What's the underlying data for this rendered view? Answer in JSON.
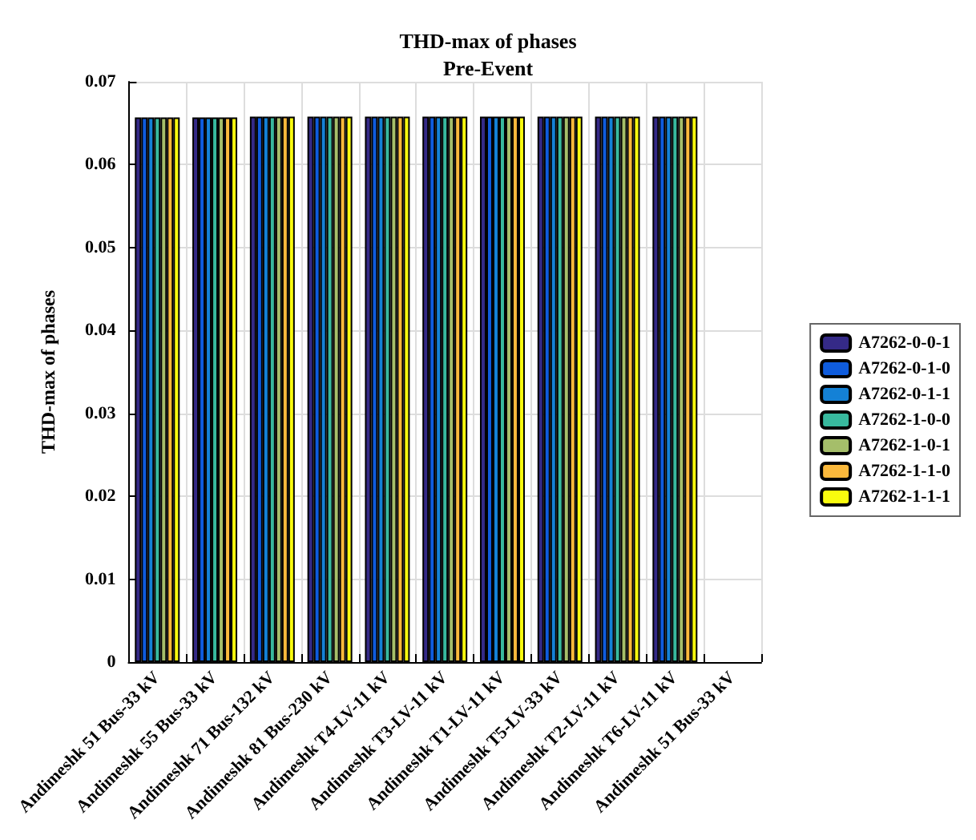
{
  "chart_data": {
    "type": "bar",
    "title": "THD-max of phases",
    "subtitle": "Pre-Event",
    "ylabel": "THD-max of phases",
    "categories": [
      "Andimeshk 51 Bus-33 kV",
      "Andimeshk 55 Bus-33 kV",
      "Andimeshk 71 Bus-132 kV",
      "Andimeshk 81 Bus-230 kV",
      "Andimeshk T4-LV-11 kV",
      "Andimeshk T3-LV-11 kV",
      "Andimeshk T1-LV-11 kV",
      "Andimeshk T5-LV-33 kV",
      "Andimeshk T2-LV-11 kV",
      "Andimeshk T6-LV-11 kV",
      "Andimeshk 51 Bus-33 kV"
    ],
    "series": [
      {
        "name": "A7262-0-0-1",
        "color": "#352a87",
        "values": [
          0.0657,
          0.0657,
          0.0658,
          0.0658,
          0.0658,
          0.0658,
          0.0658,
          0.0658,
          0.0658,
          0.0658,
          null
        ]
      },
      {
        "name": "A7262-0-1-0",
        "color": "#0f5cdd",
        "values": [
          0.0657,
          0.0657,
          0.0658,
          0.0658,
          0.0658,
          0.0658,
          0.0658,
          0.0658,
          0.0658,
          0.0658,
          null
        ]
      },
      {
        "name": "A7262-0-1-1",
        "color": "#1481d6",
        "values": [
          0.0657,
          0.0657,
          0.0658,
          0.0658,
          0.0658,
          0.0658,
          0.0658,
          0.0658,
          0.0658,
          0.0658,
          null
        ]
      },
      {
        "name": "A7262-1-0-0",
        "color": "#38b99e",
        "values": [
          0.0657,
          0.0657,
          0.0658,
          0.0658,
          0.0658,
          0.0658,
          0.0658,
          0.0658,
          0.0658,
          0.0658,
          null
        ]
      },
      {
        "name": "A7262-1-0-1",
        "color": "#a5be6a",
        "values": [
          0.0657,
          0.0657,
          0.0658,
          0.0658,
          0.0658,
          0.0658,
          0.0658,
          0.0658,
          0.0658,
          0.0658,
          null
        ]
      },
      {
        "name": "A7262-1-1-0",
        "color": "#fbb93c",
        "values": [
          0.0657,
          0.0657,
          0.0658,
          0.0658,
          0.0658,
          0.0658,
          0.0658,
          0.0658,
          0.0658,
          0.0658,
          null
        ]
      },
      {
        "name": "A7262-1-1-1",
        "color": "#f9fb0e",
        "values": [
          0.0657,
          0.0657,
          0.0658,
          0.0658,
          0.0658,
          0.0658,
          0.0658,
          0.0658,
          0.0658,
          0.0658,
          null
        ]
      }
    ],
    "ylim": [
      0,
      0.07
    ],
    "yticks": [
      0,
      0.01,
      0.02,
      0.03,
      0.04,
      0.05,
      0.06,
      0.07
    ],
    "grid": true,
    "legend": "right"
  }
}
